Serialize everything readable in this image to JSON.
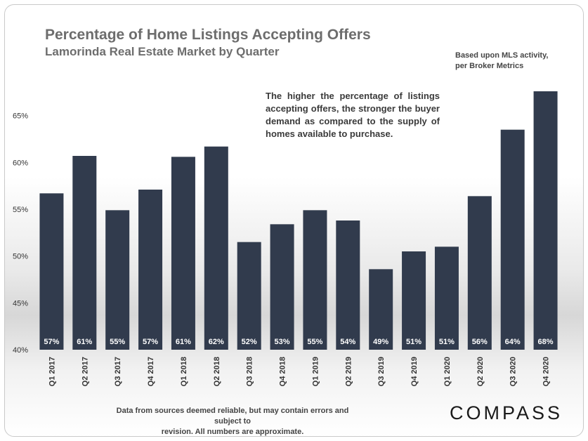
{
  "title": "Percentage of Home Listings Accepting Offers",
  "subtitle": "Lamorinda Real Estate Market by Quarter",
  "source_note_line1": "Based upon MLS activity,",
  "source_note_line2": "per Broker Metrics",
  "callout": "The higher the percentage of listings accepting offers, the stronger the buyer demand as compared to the supply of homes available to purchase.",
  "footer_line1": "Data from sources deemed reliable, but may contain errors and subject to",
  "footer_line2": "revision. All numbers are approximate.",
  "logo": "COMPASS",
  "colors": {
    "bar": "#313b4d",
    "label": "#ffffff",
    "axis_text": "#333333"
  },
  "chart_data": {
    "type": "bar",
    "categories": [
      "Q1 2017",
      "Q2 2017",
      "Q3 2017",
      "Q4 2017",
      "Q1 2018",
      "Q2 2018",
      "Q3 2018",
      "Q4 2018",
      "Q1 2019",
      "Q2 2019",
      "Q3 2019",
      "Q4 2019",
      "Q1 2020",
      "Q2 2020",
      "Q3 2020",
      "Q4 2020"
    ],
    "values": [
      56.7,
      60.7,
      54.9,
      57.1,
      60.6,
      61.7,
      51.5,
      53.4,
      54.9,
      53.8,
      48.6,
      50.5,
      51.0,
      56.4,
      63.5,
      67.6
    ],
    "data_labels": [
      "57%",
      "61%",
      "55%",
      "57%",
      "61%",
      "62%",
      "52%",
      "53%",
      "55%",
      "54%",
      "49%",
      "51%",
      "51%",
      "56%",
      "64%",
      "68%"
    ],
    "ylim": [
      40,
      70
    ],
    "yticks": [
      40,
      45,
      50,
      55,
      60,
      65
    ],
    "ytick_labels": [
      "40%",
      "45%",
      "50%",
      "55%",
      "60%",
      "65%"
    ],
    "xlabel": "",
    "ylabel": "",
    "grid": false,
    "legend": "none"
  }
}
